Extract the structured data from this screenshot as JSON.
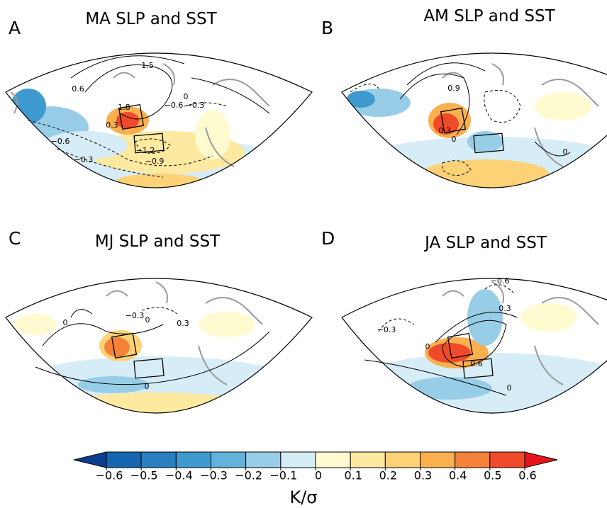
{
  "panels": [
    {
      "letter": "A",
      "title": "MA SLP and SST",
      "contour_labels": [
        "1.5",
        "0.6",
        "0",
        "1.8",
        "0.3",
        "−0.6",
        "−0.3",
        "−0.6",
        "−1.2",
        "−0.9",
        "−0.3"
      ]
    },
    {
      "letter": "B",
      "title": "AM SLP and SST",
      "contour_labels": [
        "0.9",
        "0.3",
        "0",
        "0"
      ]
    },
    {
      "letter": "C",
      "title": "MJ SLP and SST",
      "contour_labels": [
        "−0.3",
        "0",
        "0",
        "0.3",
        "0"
      ]
    },
    {
      "letter": "D",
      "title": "JA SLP and SST",
      "contour_labels": [
        "−0.6",
        "0.3",
        "−0.3",
        "0",
        "0.6",
        "0"
      ]
    }
  ],
  "colorbar": {
    "ticks": [
      {
        "value": -0.6,
        "label": "−0.6"
      },
      {
        "value": -0.5,
        "label": "−0.5"
      },
      {
        "value": -0.4,
        "label": "−0.4"
      },
      {
        "value": -0.3,
        "label": "−0.3"
      },
      {
        "value": -0.2,
        "label": "−0.2"
      },
      {
        "value": -0.1,
        "label": "−0.1"
      },
      0,
      0.1,
      0.2,
      0.3,
      0.4,
      0.5,
      0.6
    ],
    "colors": [
      "#0b3d91",
      "#1565b0",
      "#2a7fc0",
      "#3f9ad0",
      "#62b2dc",
      "#98cde8",
      "#d6ecf7",
      "#fffbd0",
      "#fde9a0",
      "#fdd277",
      "#fbb050",
      "#f6823a",
      "#ef4a2a",
      "#e8141c"
    ],
    "unit": "K/σ"
  }
}
